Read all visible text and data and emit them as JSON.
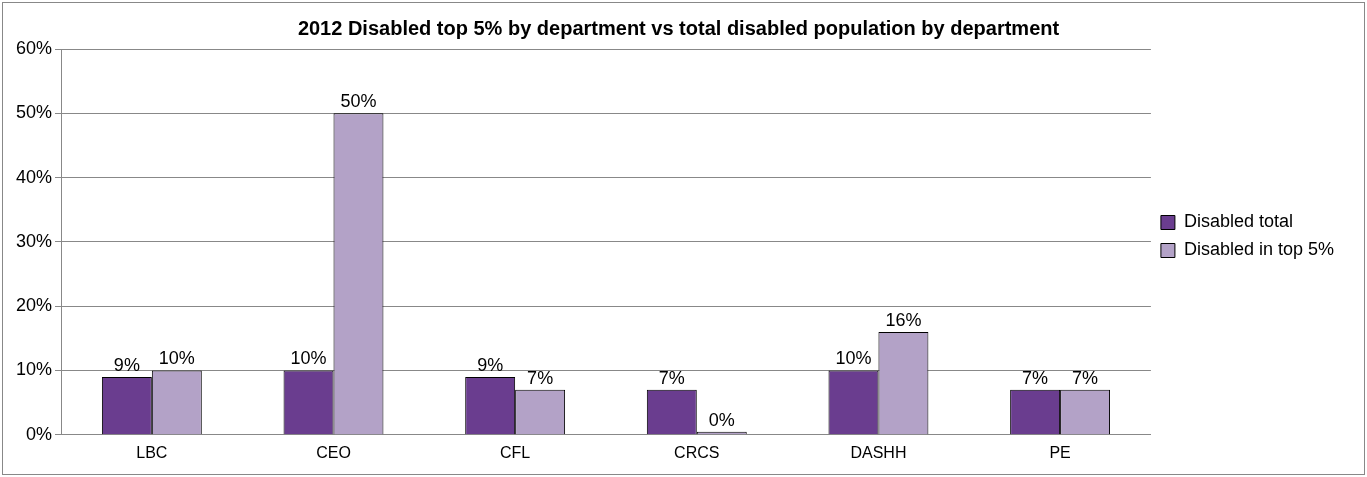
{
  "chart_data": {
    "type": "bar",
    "title": "2012 Disabled top 5% by department vs total disabled population by department",
    "categories": [
      "LBC",
      "CEO",
      "CFL",
      "CRCS",
      "DASHH",
      "PE"
    ],
    "series": [
      {
        "name": "Disabled total",
        "color": "#6a3d8f",
        "values": [
          9,
          10,
          9,
          7,
          10,
          7
        ],
        "value_labels": [
          "9%",
          "10%",
          "9%",
          "7%",
          "10%",
          "7%"
        ]
      },
      {
        "name": "Disabled in top 5%",
        "color": "#b3a2c7",
        "values": [
          10,
          50,
          7,
          0,
          16,
          7
        ],
        "value_labels": [
          "10%",
          "50%",
          "7%",
          "0%",
          "16%",
          "7%"
        ]
      }
    ],
    "ylim": [
      0,
      60
    ],
    "yticks": [
      {
        "value": 0,
        "label": "0%"
      },
      {
        "value": 10,
        "label": "10%"
      },
      {
        "value": 20,
        "label": "20%"
      },
      {
        "value": 30,
        "label": "30%"
      },
      {
        "value": 40,
        "label": "40%"
      },
      {
        "value": 50,
        "label": "50%"
      },
      {
        "value": 60,
        "label": "60%"
      }
    ],
    "grid": "y",
    "legend": "right"
  }
}
